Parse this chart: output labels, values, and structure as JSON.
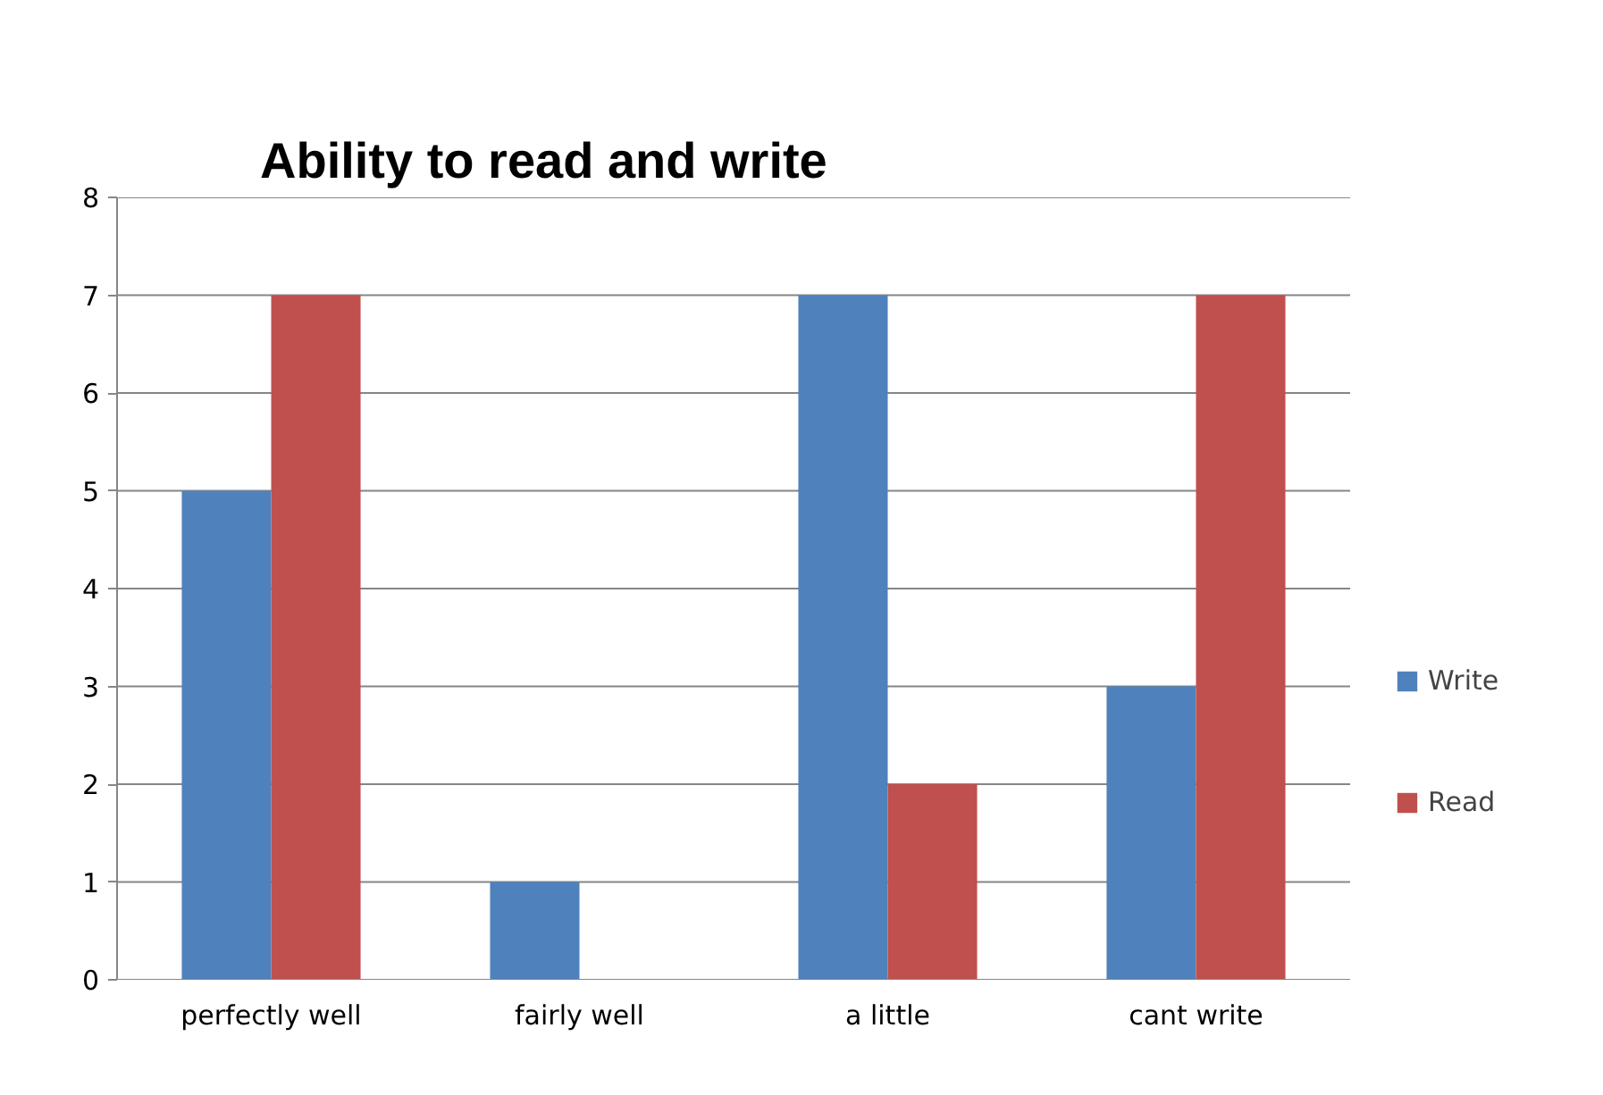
{
  "chart_data": {
    "type": "bar",
    "title": "Ability to read and write",
    "categories": [
      "perfectly well",
      "fairly well",
      "a little",
      "cant write"
    ],
    "series": [
      {
        "name": "Write",
        "color": "#4f81bd",
        "values": [
          5,
          1,
          7,
          3
        ]
      },
      {
        "name": "Read",
        "color": "#c0504d",
        "values": [
          7,
          0,
          2,
          7
        ]
      }
    ],
    "ylim": [
      0,
      8
    ],
    "yticks": [
      0,
      1,
      2,
      3,
      4,
      5,
      6,
      7,
      8
    ],
    "grid": "y",
    "legend": "right"
  }
}
